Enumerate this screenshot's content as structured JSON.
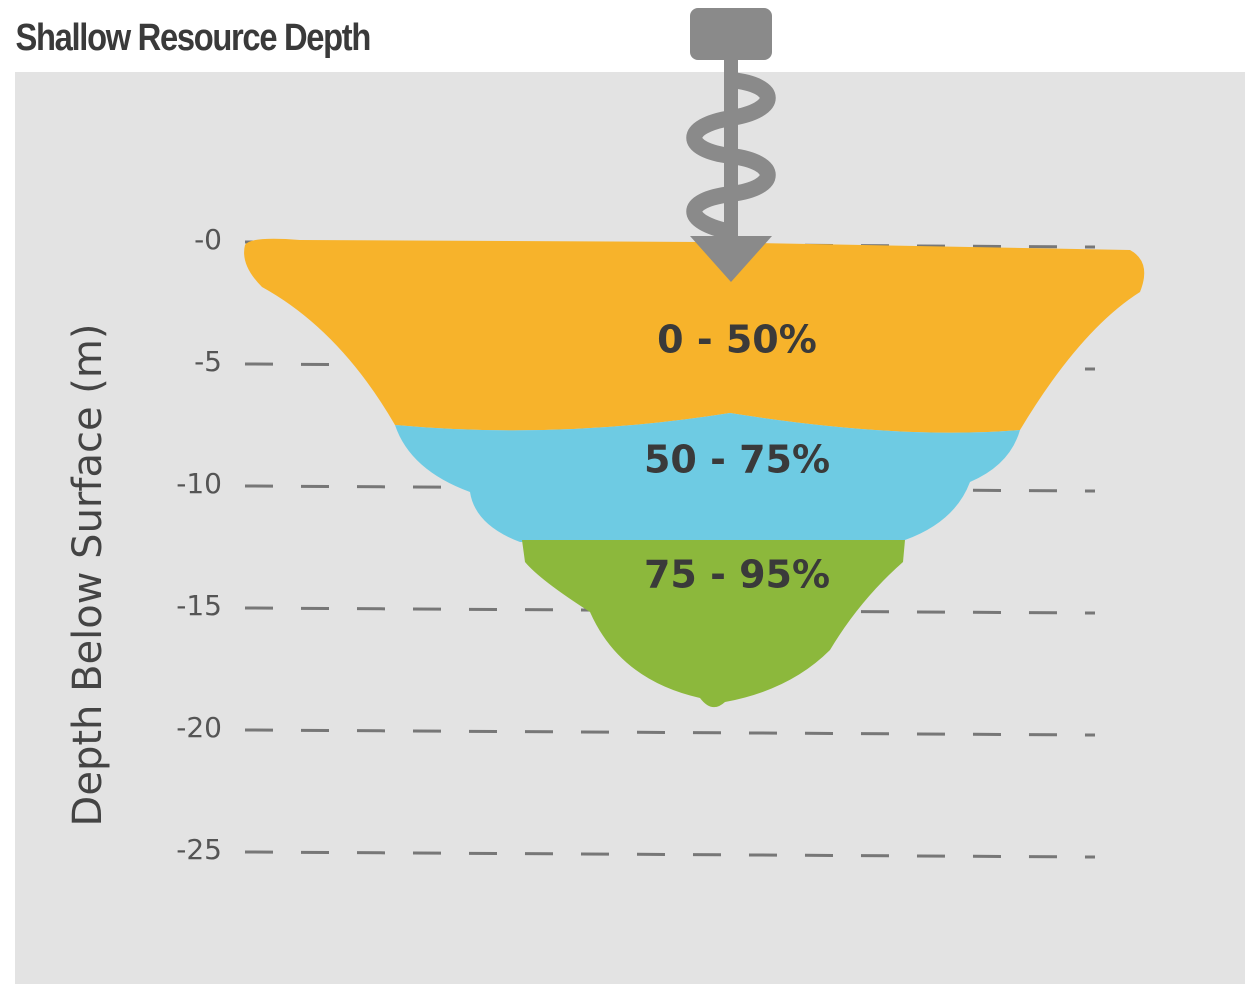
{
  "header": {
    "title": "Shallow Resource Depth"
  },
  "axis": {
    "label": "Depth Below Surface (m)",
    "ticks": [
      "-0",
      "-5",
      "-10",
      "-15",
      "-20",
      "-25"
    ]
  },
  "zones": [
    {
      "label": "0 - 50%"
    },
    {
      "label": "50 - 75%"
    },
    {
      "label": "75 - 95%"
    }
  ]
}
